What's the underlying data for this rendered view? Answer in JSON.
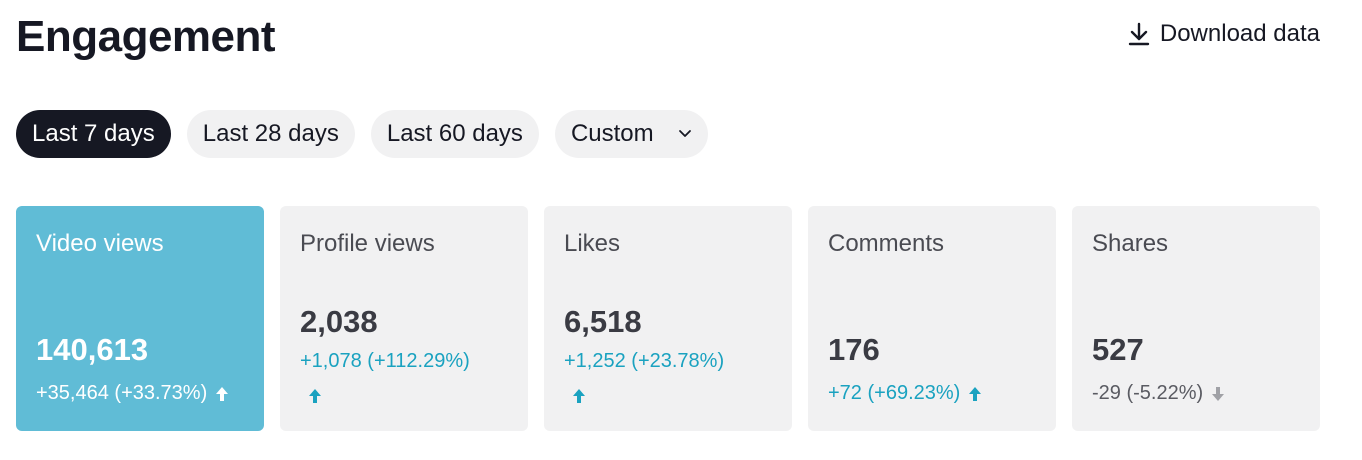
{
  "header": {
    "title": "Engagement",
    "download_label": "Download data"
  },
  "filters": [
    {
      "label": "Last 7 days",
      "active": true
    },
    {
      "label": "Last 28 days",
      "active": false
    },
    {
      "label": "Last 60 days",
      "active": false
    },
    {
      "label": "Custom",
      "active": false
    }
  ],
  "metrics": [
    {
      "label": "Video views",
      "value": "140,613",
      "delta": "+35,464 (+33.73%)",
      "trend": "up"
    },
    {
      "label": "Profile views",
      "value": "2,038",
      "delta": "+1,078 (+112.29%)",
      "trend": "up"
    },
    {
      "label": "Likes",
      "value": "6,518",
      "delta": "+1,252 (+23.78%)",
      "trend": "up"
    },
    {
      "label": "Comments",
      "value": "176",
      "delta": "+72 (+69.23%)",
      "trend": "up"
    },
    {
      "label": "Shares",
      "value": "527",
      "delta": "-29 (-5.22%)",
      "trend": "down"
    }
  ],
  "colors": {
    "active_card": "#60bcd6",
    "positive": "#1aa2c0",
    "negative": "#a0a1a6",
    "chip_active": "#161823"
  }
}
